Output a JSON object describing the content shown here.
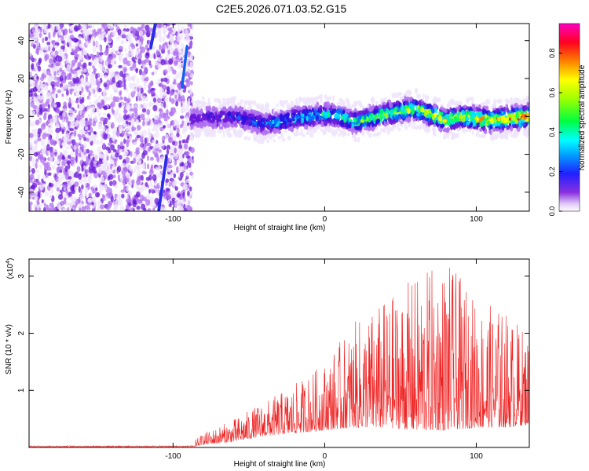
{
  "title": "C2E5.2026.071.03.52.G15",
  "colors": {
    "snr_line": "#ee2222",
    "axis": "#000000"
  },
  "chart_data": [
    {
      "type": "heatmap",
      "xlabel": "Height of straight line (km)",
      "ylabel": "Frequency (Hz)",
      "xlim": [
        -195,
        135
      ],
      "ylim": [
        -50,
        49
      ],
      "xticks": [
        -100,
        0,
        100
      ],
      "yticks": [
        -40,
        -20,
        0,
        20,
        40
      ],
      "trend": {
        "x": [
          -88,
          -80,
          -70,
          -60,
          -50,
          -40,
          -30,
          -20,
          -10,
          0,
          10,
          20,
          30,
          40,
          50,
          60,
          70,
          80,
          90,
          100,
          110,
          120,
          135
        ],
        "freq": [
          -2,
          0,
          -1,
          0,
          -2,
          -4,
          -3,
          -1,
          0,
          1,
          0,
          -3,
          -1,
          1,
          3,
          4,
          1,
          -2,
          0,
          -1,
          -2,
          -1,
          0
        ]
      },
      "colorbar": {
        "label": "Normalized spectral amplitude",
        "range": [
          0.0,
          0.95
        ],
        "ticks": [
          0.0,
          0.2,
          0.4,
          0.6,
          0.8
        ]
      }
    },
    {
      "type": "line",
      "xlabel": "Height of straight line (km)",
      "ylabel": "SNR (10 * v/v)",
      "y_scale_label": "(x10",
      "y_scale_exp": "4",
      "xlim": [
        -195,
        135
      ],
      "ylim": [
        0,
        3.3
      ],
      "xticks": [
        -100,
        0,
        100
      ],
      "yticks": [
        1,
        2,
        3
      ],
      "envelope": {
        "x": [
          -195,
          -90,
          -80,
          -60,
          -40,
          -20,
          0,
          20,
          40,
          60,
          80,
          100,
          120,
          135
        ],
        "low": [
          0.0,
          0.0,
          0.05,
          0.1,
          0.2,
          0.25,
          0.3,
          0.35,
          0.35,
          0.3,
          0.3,
          0.35,
          0.35,
          0.4
        ],
        "high": [
          0.02,
          0.03,
          0.25,
          0.5,
          0.8,
          1.1,
          1.5,
          2.2,
          2.6,
          3.0,
          3.3,
          2.6,
          2.4,
          2.0
        ]
      }
    }
  ]
}
